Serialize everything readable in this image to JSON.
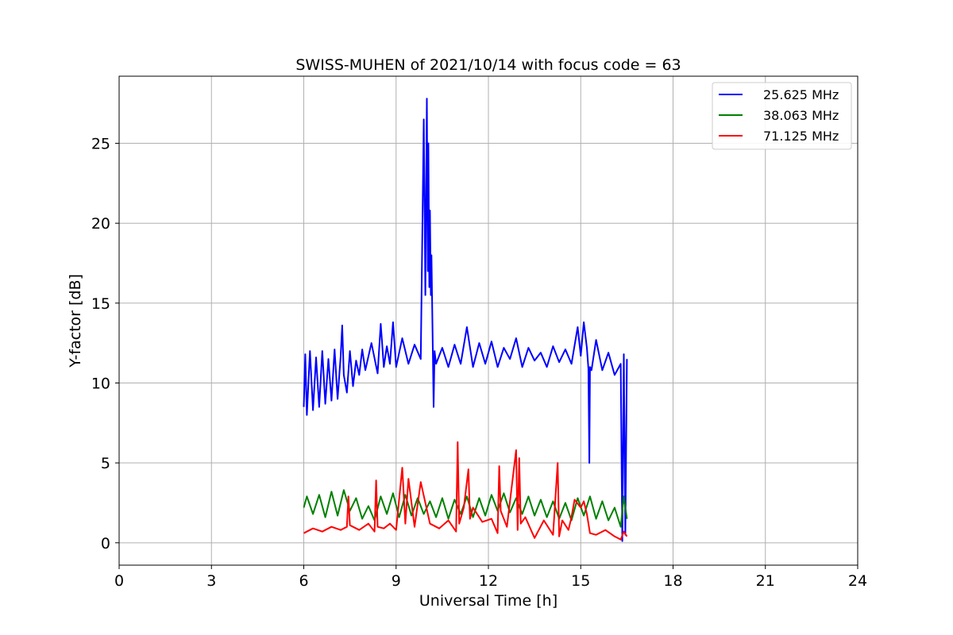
{
  "chart_data": {
    "type": "line",
    "title": "SWISS-MUHEN of 2021/10/14 with focus code = 63",
    "xlabel": "Universal Time [h]",
    "ylabel": "Y-factor [dB]",
    "xlim": [
      0,
      24
    ],
    "ylim": [
      -1.4,
      29.2
    ],
    "x_ticks": [
      0,
      3,
      6,
      9,
      12,
      15,
      18,
      21,
      24
    ],
    "y_ticks": [
      0,
      5,
      10,
      15,
      20,
      25
    ],
    "grid": true,
    "legend_position": "top-right",
    "series": [
      {
        "name": "25.625 MHz",
        "color": "#0000ff",
        "x": [
          6.0,
          6.05,
          6.1,
          6.2,
          6.3,
          6.4,
          6.5,
          6.6,
          6.7,
          6.8,
          6.9,
          7.0,
          7.1,
          7.2,
          7.25,
          7.3,
          7.4,
          7.5,
          7.6,
          7.7,
          7.8,
          7.9,
          8.0,
          8.2,
          8.4,
          8.5,
          8.6,
          8.7,
          8.8,
          8.9,
          9.0,
          9.2,
          9.4,
          9.6,
          9.8,
          9.9,
          9.95,
          10.0,
          10.03,
          10.05,
          10.08,
          10.1,
          10.13,
          10.15,
          10.2,
          10.22,
          10.25,
          10.3,
          10.5,
          10.7,
          10.9,
          11.1,
          11.3,
          11.5,
          11.7,
          11.9,
          12.1,
          12.3,
          12.5,
          12.7,
          12.9,
          13.1,
          13.3,
          13.5,
          13.7,
          13.9,
          14.1,
          14.3,
          14.5,
          14.7,
          14.9,
          15.0,
          15.1,
          15.2,
          15.25,
          15.28,
          15.3,
          15.35,
          15.5,
          15.7,
          15.9,
          16.1,
          16.3,
          16.35,
          16.4,
          16.45,
          16.5
        ],
        "y": [
          8.5,
          11.8,
          8.0,
          12.0,
          8.3,
          11.6,
          8.5,
          12.0,
          8.7,
          11.5,
          8.9,
          12.1,
          9.0,
          11.7,
          13.6,
          10.5,
          9.4,
          12.0,
          9.8,
          11.4,
          10.5,
          12.1,
          10.8,
          12.5,
          10.6,
          13.7,
          11.0,
          12.3,
          11.2,
          13.8,
          11.0,
          12.8,
          11.2,
          12.4,
          11.5,
          26.5,
          15.5,
          27.8,
          17.0,
          25.0,
          16.0,
          20.8,
          15.5,
          18.0,
          11.0,
          8.5,
          12.0,
          11.2,
          12.2,
          11.0,
          12.4,
          11.2,
          13.5,
          11.0,
          12.5,
          11.2,
          12.6,
          11.0,
          12.2,
          11.5,
          12.8,
          11.0,
          12.2,
          11.4,
          11.9,
          11.0,
          12.3,
          11.3,
          12.1,
          11.2,
          13.5,
          11.7,
          13.8,
          12.2,
          10.9,
          5.0,
          11.0,
          10.8,
          12.7,
          10.8,
          11.9,
          10.5,
          11.2,
          0.1,
          11.8,
          0.5,
          11.5
        ]
      },
      {
        "name": "38.063 MHz",
        "color": "#008000",
        "x": [
          6.0,
          6.1,
          6.3,
          6.5,
          6.7,
          6.9,
          7.1,
          7.3,
          7.5,
          7.7,
          7.9,
          8.1,
          8.3,
          8.5,
          8.7,
          8.9,
          9.1,
          9.3,
          9.5,
          9.7,
          9.9,
          10.1,
          10.3,
          10.5,
          10.7,
          10.9,
          11.1,
          11.3,
          11.5,
          11.7,
          11.9,
          12.1,
          12.3,
          12.5,
          12.7,
          12.9,
          13.1,
          13.3,
          13.5,
          13.7,
          13.9,
          14.1,
          14.3,
          14.5,
          14.7,
          14.9,
          15.1,
          15.3,
          15.5,
          15.7,
          15.9,
          16.1,
          16.3,
          16.4,
          16.5
        ],
        "y": [
          2.2,
          2.9,
          1.8,
          3.0,
          1.6,
          3.2,
          1.7,
          3.3,
          2.0,
          2.8,
          1.5,
          2.3,
          1.4,
          2.9,
          1.8,
          3.1,
          1.6,
          3.0,
          1.7,
          2.8,
          1.8,
          2.6,
          1.6,
          2.8,
          1.5,
          2.7,
          1.8,
          2.9,
          1.6,
          2.8,
          1.7,
          3.0,
          2.0,
          3.1,
          1.9,
          2.8,
          1.8,
          2.9,
          1.7,
          2.7,
          1.6,
          2.6,
          1.5,
          2.5,
          1.4,
          2.8,
          1.7,
          2.9,
          1.5,
          2.6,
          1.4,
          2.2,
          1.0,
          2.9,
          1.5
        ]
      },
      {
        "name": "71.125 MHz",
        "color": "#ff0000",
        "x": [
          6.0,
          6.3,
          6.6,
          6.9,
          7.2,
          7.4,
          7.45,
          7.5,
          7.8,
          8.1,
          8.3,
          8.35,
          8.4,
          8.6,
          8.8,
          9.0,
          9.2,
          9.3,
          9.4,
          9.6,
          9.8,
          10.1,
          10.4,
          10.7,
          10.95,
          11.0,
          11.05,
          11.2,
          11.35,
          11.4,
          11.5,
          11.8,
          12.1,
          12.3,
          12.35,
          12.4,
          12.6,
          12.9,
          12.95,
          13.0,
          13.05,
          13.2,
          13.5,
          13.8,
          14.1,
          14.25,
          14.3,
          14.4,
          14.6,
          14.7,
          14.8,
          15.0,
          15.1,
          15.2,
          15.3,
          15.5,
          15.8,
          16.1,
          16.3,
          16.4,
          16.5
        ],
        "y": [
          0.6,
          0.9,
          0.7,
          1.0,
          0.8,
          1.0,
          2.9,
          1.1,
          0.8,
          1.2,
          0.7,
          3.9,
          1.0,
          0.9,
          1.2,
          0.8,
          4.7,
          1.2,
          4.0,
          1.0,
          3.8,
          1.2,
          0.9,
          1.4,
          0.7,
          6.3,
          1.2,
          2.2,
          4.6,
          1.5,
          2.2,
          1.3,
          1.5,
          0.6,
          4.8,
          2.0,
          1.0,
          5.8,
          0.8,
          5.3,
          1.2,
          1.6,
          0.3,
          1.4,
          0.5,
          5.0,
          0.4,
          1.4,
          0.8,
          1.6,
          2.7,
          2.2,
          2.6,
          1.8,
          0.6,
          0.5,
          0.8,
          0.4,
          0.2,
          0.7,
          0.4
        ]
      }
    ]
  }
}
